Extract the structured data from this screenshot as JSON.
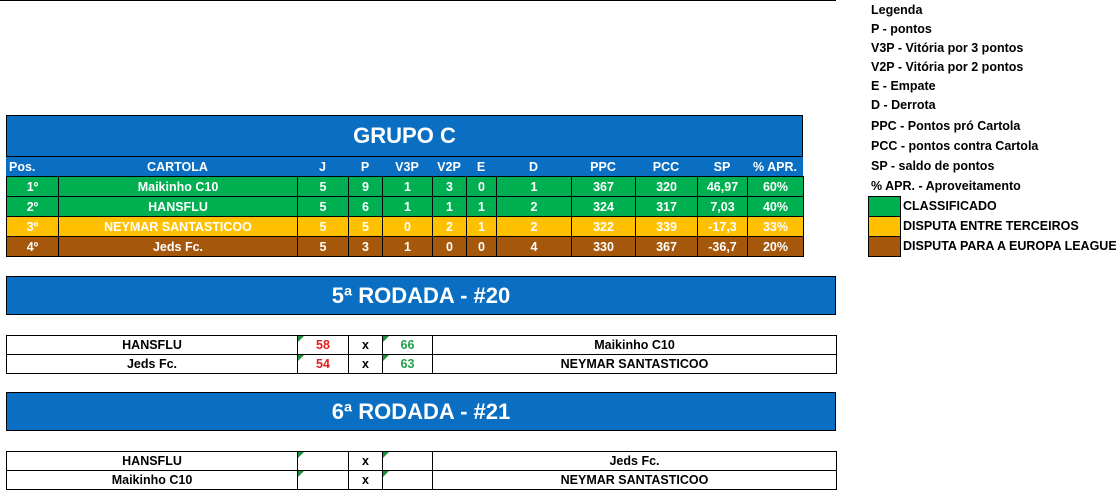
{
  "standings": {
    "title": "GRUPO C",
    "headers": [
      "Pos.",
      "CARTOLA",
      "J",
      "P",
      "V3P",
      "V2P",
      "E",
      "D",
      "PPC",
      "PCC",
      "SP",
      "% APR."
    ],
    "rows": [
      {
        "color": "#00B050",
        "cells": [
          "1º",
          "Maikinho C10",
          "5",
          "9",
          "1",
          "3",
          "0",
          "1",
          "367",
          "320",
          "46,97",
          "60%"
        ]
      },
      {
        "color": "#00B050",
        "cells": [
          "2º",
          "HANSFLU",
          "5",
          "6",
          "1",
          "1",
          "1",
          "2",
          "324",
          "317",
          "7,03",
          "40%"
        ]
      },
      {
        "color": "#FFC000",
        "cells": [
          "3º",
          "NEYMAR SANTASTICOO",
          "5",
          "5",
          "0",
          "2",
          "1",
          "2",
          "322",
          "339",
          "-17,3",
          "33%"
        ]
      },
      {
        "color": "#A5570B",
        "cells": [
          "4º",
          "Jeds Fc.",
          "5",
          "3",
          "1",
          "0",
          "0",
          "4",
          "330",
          "367",
          "-36,7",
          "20%"
        ]
      }
    ]
  },
  "rounds": [
    {
      "title": "5ª RODADA - #20",
      "separator": "x",
      "matches": [
        {
          "home": "HANSFLU",
          "home_score": "58",
          "away_score": "66",
          "away": "Maikinho C10"
        },
        {
          "home": "Jeds Fc.",
          "home_score": "54",
          "away_score": "63",
          "away": "NEYMAR SANTASTICOO"
        }
      ]
    },
    {
      "title": "6ª RODADA - #21",
      "separator": "x",
      "matches": [
        {
          "home": "HANSFLU",
          "away": "Jeds Fc."
        },
        {
          "home": "Maikinho C10",
          "away": "NEYMAR SANTASTICOO"
        }
      ]
    }
  ],
  "legend": {
    "title": "Legenda",
    "items": [
      "P - pontos",
      "V3P - Vitória por 3 pontos",
      "V2P - Vitória por 2 pontos",
      "E - Empate",
      "D - Derrota",
      "PPC - Pontos pró Cartola",
      "PCC - pontos contra Cartola",
      "SP - saldo de pontos",
      "% APR. - Aproveitamento"
    ],
    "statuses": [
      {
        "color": "#00B050",
        "label": "CLASSIFICADO"
      },
      {
        "color": "#FFC000",
        "label": "DISPUTA ENTRE TERCEIROS"
      },
      {
        "color": "#A5570B",
        "label": "DISPUTA PARA A EUROPA LEAGUE"
      }
    ]
  }
}
